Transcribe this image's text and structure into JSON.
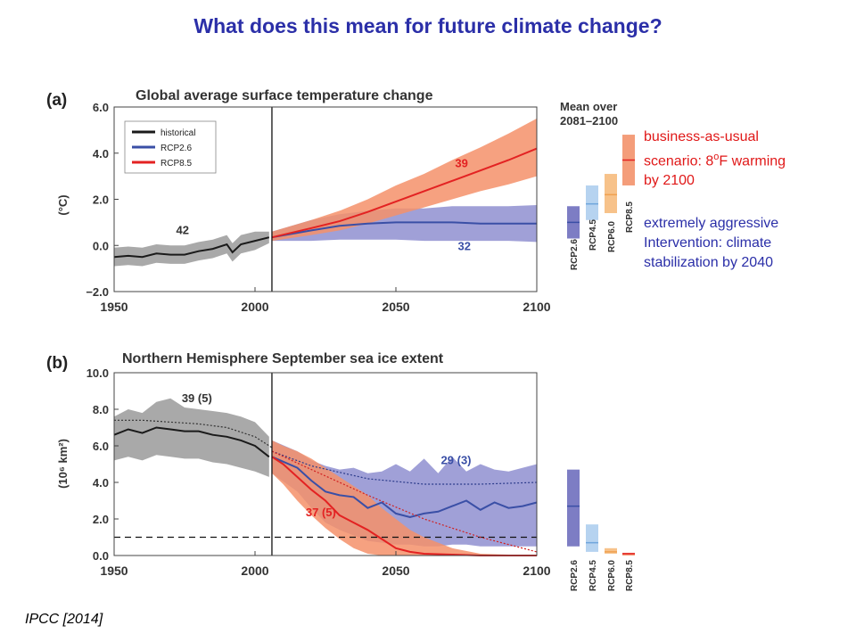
{
  "slide": {
    "title": "What does this mean for future climate change?",
    "annotation_red_line1": "business-as-usual",
    "annotation_red_line2_pre": "scenario: 8",
    "annotation_red_line2_sup": "o",
    "annotation_red_line2_post": "F warming",
    "annotation_red_line3": "by 2100",
    "annotation_blue_line1": "extremely aggressive",
    "annotation_blue_line2": "Intervention: climate",
    "annotation_blue_line3": "stabilization by 2040",
    "source": "IPCC [2014]"
  },
  "colors": {
    "historical": "#1a1a1a",
    "rcp26": "#3a4fa6",
    "rcp85": "#e32222",
    "rcp45": "#6fa6dc",
    "rcp60": "#f0a050",
    "band_hist": "#9a9a9a",
    "band_rcp26": "#8f8fd0",
    "band_rcp85": "#f4906a"
  },
  "chart_data": [
    {
      "type": "line",
      "panel": "(a)",
      "title": "Global average surface temperature change",
      "ylabel": "(°C)",
      "xlim": [
        1950,
        2100
      ],
      "ylim": [
        -2,
        6
      ],
      "xticks": [
        "1950",
        "2000",
        "2050",
        "2100"
      ],
      "yticks": [
        "−2.0",
        "0.0",
        "2.0",
        "4.0",
        "6.0"
      ],
      "legend": [
        "historical",
        "RCP2.6",
        "RCP8.5"
      ],
      "legend_position": "top-left",
      "vline_x": 2006,
      "labels": {
        "n_hist": "42",
        "n_rcp85": "39",
        "n_rcp26": "32"
      },
      "series": [
        {
          "name": "historical",
          "x": [
            1950,
            1955,
            1960,
            1965,
            1970,
            1975,
            1980,
            1985,
            1990,
            1992,
            1995,
            2000,
            2005
          ],
          "y": [
            -0.5,
            -0.45,
            -0.5,
            -0.35,
            -0.4,
            -0.4,
            -0.25,
            -0.15,
            0.05,
            -0.3,
            0.05,
            0.2,
            0.35
          ],
          "band_lo": [
            -0.9,
            -0.85,
            -0.9,
            -0.75,
            -0.8,
            -0.8,
            -0.65,
            -0.55,
            -0.35,
            -0.7,
            -0.35,
            -0.2,
            0.1
          ],
          "band_hi": [
            -0.1,
            -0.05,
            -0.1,
            0.05,
            0.0,
            0.0,
            0.15,
            0.25,
            0.45,
            0.1,
            0.45,
            0.6,
            0.6
          ]
        },
        {
          "name": "RCP2.6",
          "x": [
            2006,
            2020,
            2030,
            2040,
            2050,
            2060,
            2070,
            2080,
            2090,
            2100
          ],
          "y": [
            0.35,
            0.65,
            0.85,
            0.95,
            1.0,
            1.0,
            1.0,
            0.95,
            0.95,
            0.95
          ],
          "band_lo": [
            0.2,
            0.2,
            0.25,
            0.25,
            0.25,
            0.2,
            0.2,
            0.2,
            0.2,
            0.15
          ],
          "band_hi": [
            0.6,
            1.1,
            1.35,
            1.5,
            1.6,
            1.6,
            1.7,
            1.7,
            1.7,
            1.75
          ]
        },
        {
          "name": "RCP8.5",
          "x": [
            2006,
            2020,
            2030,
            2040,
            2050,
            2060,
            2070,
            2080,
            2090,
            2100
          ],
          "y": [
            0.35,
            0.75,
            1.05,
            1.45,
            1.9,
            2.35,
            2.8,
            3.25,
            3.7,
            4.2
          ],
          "band_lo": [
            0.2,
            0.45,
            0.65,
            0.95,
            1.3,
            1.65,
            2.0,
            2.35,
            2.65,
            3.0
          ],
          "band_hi": [
            0.6,
            1.1,
            1.5,
            2.0,
            2.6,
            3.1,
            3.7,
            4.25,
            4.85,
            5.5
          ]
        }
      ],
      "mean_bars": {
        "title_line1": "Mean over",
        "title_line2": "2081–2100",
        "scenarios": [
          "RCP2.6",
          "RCP4.5",
          "RCP6.0",
          "RCP8.5"
        ],
        "mean": [
          1.0,
          1.8,
          2.2,
          3.7
        ],
        "lo": [
          0.3,
          1.1,
          1.4,
          2.6
        ],
        "hi": [
          1.7,
          2.6,
          3.1,
          4.8
        ]
      }
    },
    {
      "type": "line",
      "panel": "(b)",
      "title": "Northern Hemisphere September sea ice extent",
      "ylabel": "(10⁶ km²)",
      "xlim": [
        1950,
        2100
      ],
      "ylim": [
        0,
        10
      ],
      "xticks": [
        "1950",
        "2000",
        "2050",
        "2100"
      ],
      "yticks": [
        "0.0",
        "2.0",
        "4.0",
        "6.0",
        "8.0",
        "10.0"
      ],
      "vline_x": 2006,
      "threshold_y": 1.0,
      "labels": {
        "n_hist": "39 (5)",
        "n_rcp26": "29 (3)",
        "n_rcp85": "37 (5)"
      },
      "series": [
        {
          "name": "historical",
          "x": [
            1950,
            1955,
            1960,
            1965,
            1970,
            1975,
            1980,
            1985,
            1990,
            1995,
            2000,
            2005
          ],
          "y": [
            6.6,
            6.9,
            6.7,
            7.0,
            6.9,
            6.8,
            6.8,
            6.6,
            6.5,
            6.3,
            6.0,
            5.4
          ],
          "band_lo": [
            5.2,
            5.4,
            5.2,
            5.5,
            5.4,
            5.3,
            5.3,
            5.1,
            5.0,
            4.8,
            4.6,
            4.3
          ],
          "band_hi": [
            7.6,
            8.0,
            7.8,
            8.4,
            8.6,
            8.1,
            8.0,
            7.9,
            7.8,
            7.6,
            7.3,
            6.5
          ]
        },
        {
          "name": "historical-observed-dotted",
          "x": [
            1950,
            1960,
            1970,
            1980,
            1990,
            2000,
            2006
          ],
          "y": [
            7.4,
            7.4,
            7.3,
            7.2,
            7.0,
            6.5,
            5.9
          ]
        },
        {
          "name": "RCP2.6",
          "x": [
            2006,
            2015,
            2020,
            2025,
            2030,
            2035,
            2040,
            2045,
            2050,
            2055,
            2060,
            2065,
            2070,
            2075,
            2080,
            2085,
            2090,
            2095,
            2100
          ],
          "y": [
            5.4,
            4.8,
            4.1,
            3.5,
            3.3,
            3.2,
            2.6,
            2.9,
            2.3,
            2.1,
            2.3,
            2.4,
            2.7,
            3.0,
            2.5,
            2.9,
            2.6,
            2.7,
            2.9
          ],
          "band_lo": [
            4.5,
            3.5,
            2.6,
            1.8,
            1.4,
            1.1,
            0.8,
            0.7,
            0.6,
            0.6,
            0.5,
            0.5,
            0.6,
            0.6,
            0.5,
            0.5,
            0.5,
            0.5,
            0.5
          ],
          "band_hi": [
            6.3,
            5.7,
            5.2,
            4.9,
            4.7,
            4.8,
            4.5,
            4.6,
            5.0,
            4.6,
            5.3,
            4.5,
            5.4,
            4.6,
            5.0,
            4.7,
            4.6,
            4.8,
            5.0
          ]
        },
        {
          "name": "RCP2.6-observed-dotted",
          "x": [
            2006,
            2020,
            2040,
            2060,
            2080,
            2100
          ],
          "y": [
            5.7,
            4.9,
            4.2,
            3.9,
            3.9,
            4.0
          ]
        },
        {
          "name": "RCP8.5",
          "x": [
            2006,
            2010,
            2015,
            2020,
            2025,
            2030,
            2035,
            2040,
            2045,
            2050,
            2055,
            2060,
            2070,
            2080,
            2090,
            2100
          ],
          "y": [
            5.4,
            5.0,
            4.3,
            3.6,
            3.0,
            2.2,
            1.8,
            1.4,
            0.9,
            0.4,
            0.2,
            0.1,
            0.05,
            0.0,
            0.0,
            0.0
          ],
          "band_lo": [
            4.5,
            3.9,
            3.0,
            2.2,
            1.5,
            0.9,
            0.4,
            0.1,
            0.0,
            0.0,
            0.0,
            0.0,
            0.0,
            0.0,
            0.0,
            0.0
          ],
          "band_hi": [
            6.3,
            6.0,
            5.7,
            5.3,
            4.8,
            4.3,
            3.8,
            3.3,
            2.6,
            2.0,
            1.4,
            1.0,
            0.4,
            0.1,
            0.05,
            0.05
          ]
        },
        {
          "name": "RCP8.5-observed-dotted",
          "x": [
            2006,
            2020,
            2040,
            2060,
            2080,
            2100
          ],
          "y": [
            5.7,
            4.7,
            3.3,
            2.0,
            1.0,
            0.2
          ]
        }
      ],
      "mean_bars": {
        "scenarios": [
          "RCP2.6",
          "RCP4.5",
          "RCP6.0",
          "RCP8.5"
        ],
        "mean": [
          2.7,
          0.7,
          0.2,
          0.1
        ],
        "lo": [
          0.5,
          0.2,
          0.1,
          0.0
        ],
        "hi": [
          4.7,
          1.7,
          0.4,
          0.15
        ]
      }
    }
  ]
}
